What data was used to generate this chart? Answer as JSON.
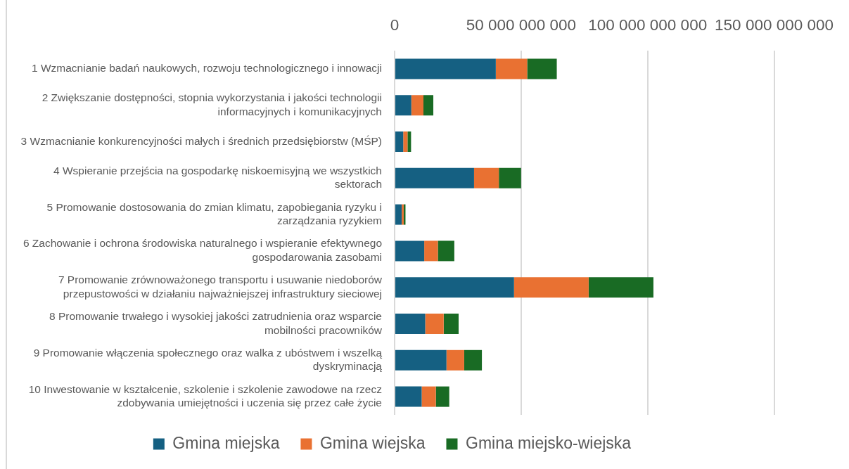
{
  "chart_data": {
    "type": "bar",
    "orientation": "horizontal",
    "stacked": true,
    "categories": [
      "1 Wzmacnianie badań naukowych, rozwoju technologicznego i innowacji",
      "2 Zwiększanie dostępności, stopnia wykorzystania i jakości technologii informacyjnych i komunikacyjnych",
      "3 Wzmacnianie konkurencyjności małych i średnich przedsiębiorstw (MŚP)",
      "4 Wspieranie przejścia na gospodarkę niskoemisyjną we wszystkich sektorach",
      "5 Promowanie dostosowania do zmian klimatu, zapobiegania ryzyku i zarządzania ryzykiem",
      "6 Zachowanie i ochrona środowiska naturalnego i wspieranie efektywnego gospodarowania zasobami",
      "7 Promowanie zrównoważonego transportu i usuwanie niedoborów przepustowości w działaniu najważniejszej infrastruktury sieciowej",
      "8 Promowanie trwałego i wysokiej jakości zatrudnienia oraz wsparcie mobilności pracowników",
      "9 Promowanie włączenia społecznego oraz walka z ubóstwem i wszelką dyskryminacją",
      "10 Inwestowanie w kształcenie, szkolenie i szkolenie zawodowe na rzecz zdobywania umiejętności i uczenia się przez całe życie"
    ],
    "series": [
      {
        "name": "Gmina miejska",
        "color": "#156082",
        "values": [
          40000000000,
          6600000000,
          3400000000,
          31400000000,
          2800000000,
          11700000000,
          47200000000,
          12100000000,
          20500000000,
          10700000000
        ]
      },
      {
        "name": "Gmina wiejska",
        "color": "#e97132",
        "values": [
          12400000000,
          4800000000,
          1700000000,
          9800000000,
          800000000,
          5400000000,
          29500000000,
          7300000000,
          7000000000,
          5600000000
        ]
      },
      {
        "name": "Gmina miejsko-wiejska",
        "color": "#196b24",
        "values": [
          11700000000,
          3900000000,
          1400000000,
          8800000000,
          700000000,
          6500000000,
          25600000000,
          5900000000,
          7000000000,
          5300000000
        ]
      }
    ],
    "xlim": [
      0,
      150000000000
    ],
    "xticks": [
      0,
      {
        "value": 50000000000,
        "label": "50 000 000 000"
      },
      {
        "value": 100000000000,
        "label": "100 000 000 000"
      },
      {
        "value": 150000000000,
        "label": "150 000 000 000"
      }
    ],
    "grid": "x",
    "legend": "bottom"
  }
}
